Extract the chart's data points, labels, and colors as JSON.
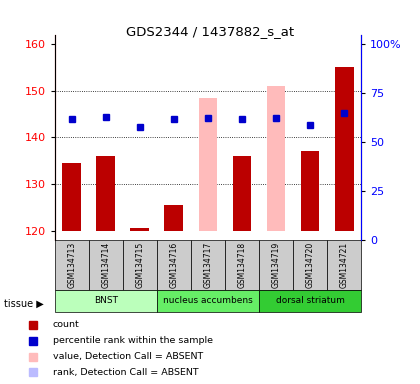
{
  "title": "GDS2344 / 1437882_s_at",
  "samples": [
    "GSM134713",
    "GSM134714",
    "GSM134715",
    "GSM134716",
    "GSM134717",
    "GSM134718",
    "GSM134719",
    "GSM134720",
    "GSM134721"
  ],
  "count_values": [
    134.5,
    136.0,
    120.5,
    125.5,
    120.0,
    136.0,
    120.0,
    137.0,
    155.0
  ],
  "rank_pct": [
    62.0,
    63.0,
    58.0,
    62.0,
    62.5,
    62.0,
    62.5,
    59.0,
    65.0
  ],
  "absent_value": [
    null,
    null,
    null,
    null,
    148.5,
    null,
    151.0,
    null,
    null
  ],
  "absent_rank_pct": [
    null,
    null,
    null,
    null,
    62.5,
    null,
    62.5,
    null,
    null
  ],
  "absent_mask": [
    false,
    false,
    false,
    false,
    true,
    false,
    true,
    false,
    false
  ],
  "ylim_left": [
    118,
    162
  ],
  "ylim_right": [
    0,
    105
  ],
  "yticks_left": [
    120,
    130,
    140,
    150,
    160
  ],
  "yticks_right": [
    0,
    25,
    50,
    75,
    100
  ],
  "yticklabels_right": [
    "0",
    "25",
    "50",
    "75",
    "100%"
  ],
  "bar_color_red": "#bb0000",
  "bar_color_blue": "#0000cc",
  "absent_bar_color": "#ffbbbb",
  "absent_rank_color": "#bbbbff",
  "label_area_color": "#cccccc",
  "tissue_colors": [
    "#bbffbb",
    "#66ee66",
    "#33cc33"
  ],
  "tissues": [
    {
      "label": "BNST",
      "start": 0,
      "end": 3
    },
    {
      "label": "nucleus accumbens",
      "start": 3,
      "end": 6
    },
    {
      "label": "dorsal striatum",
      "start": 6,
      "end": 9
    }
  ],
  "legend_items": [
    {
      "color": "#bb0000",
      "label": "count"
    },
    {
      "color": "#0000cc",
      "label": "percentile rank within the sample"
    },
    {
      "color": "#ffbbbb",
      "label": "value, Detection Call = ABSENT"
    },
    {
      "color": "#bbbbff",
      "label": "rank, Detection Call = ABSENT"
    }
  ]
}
